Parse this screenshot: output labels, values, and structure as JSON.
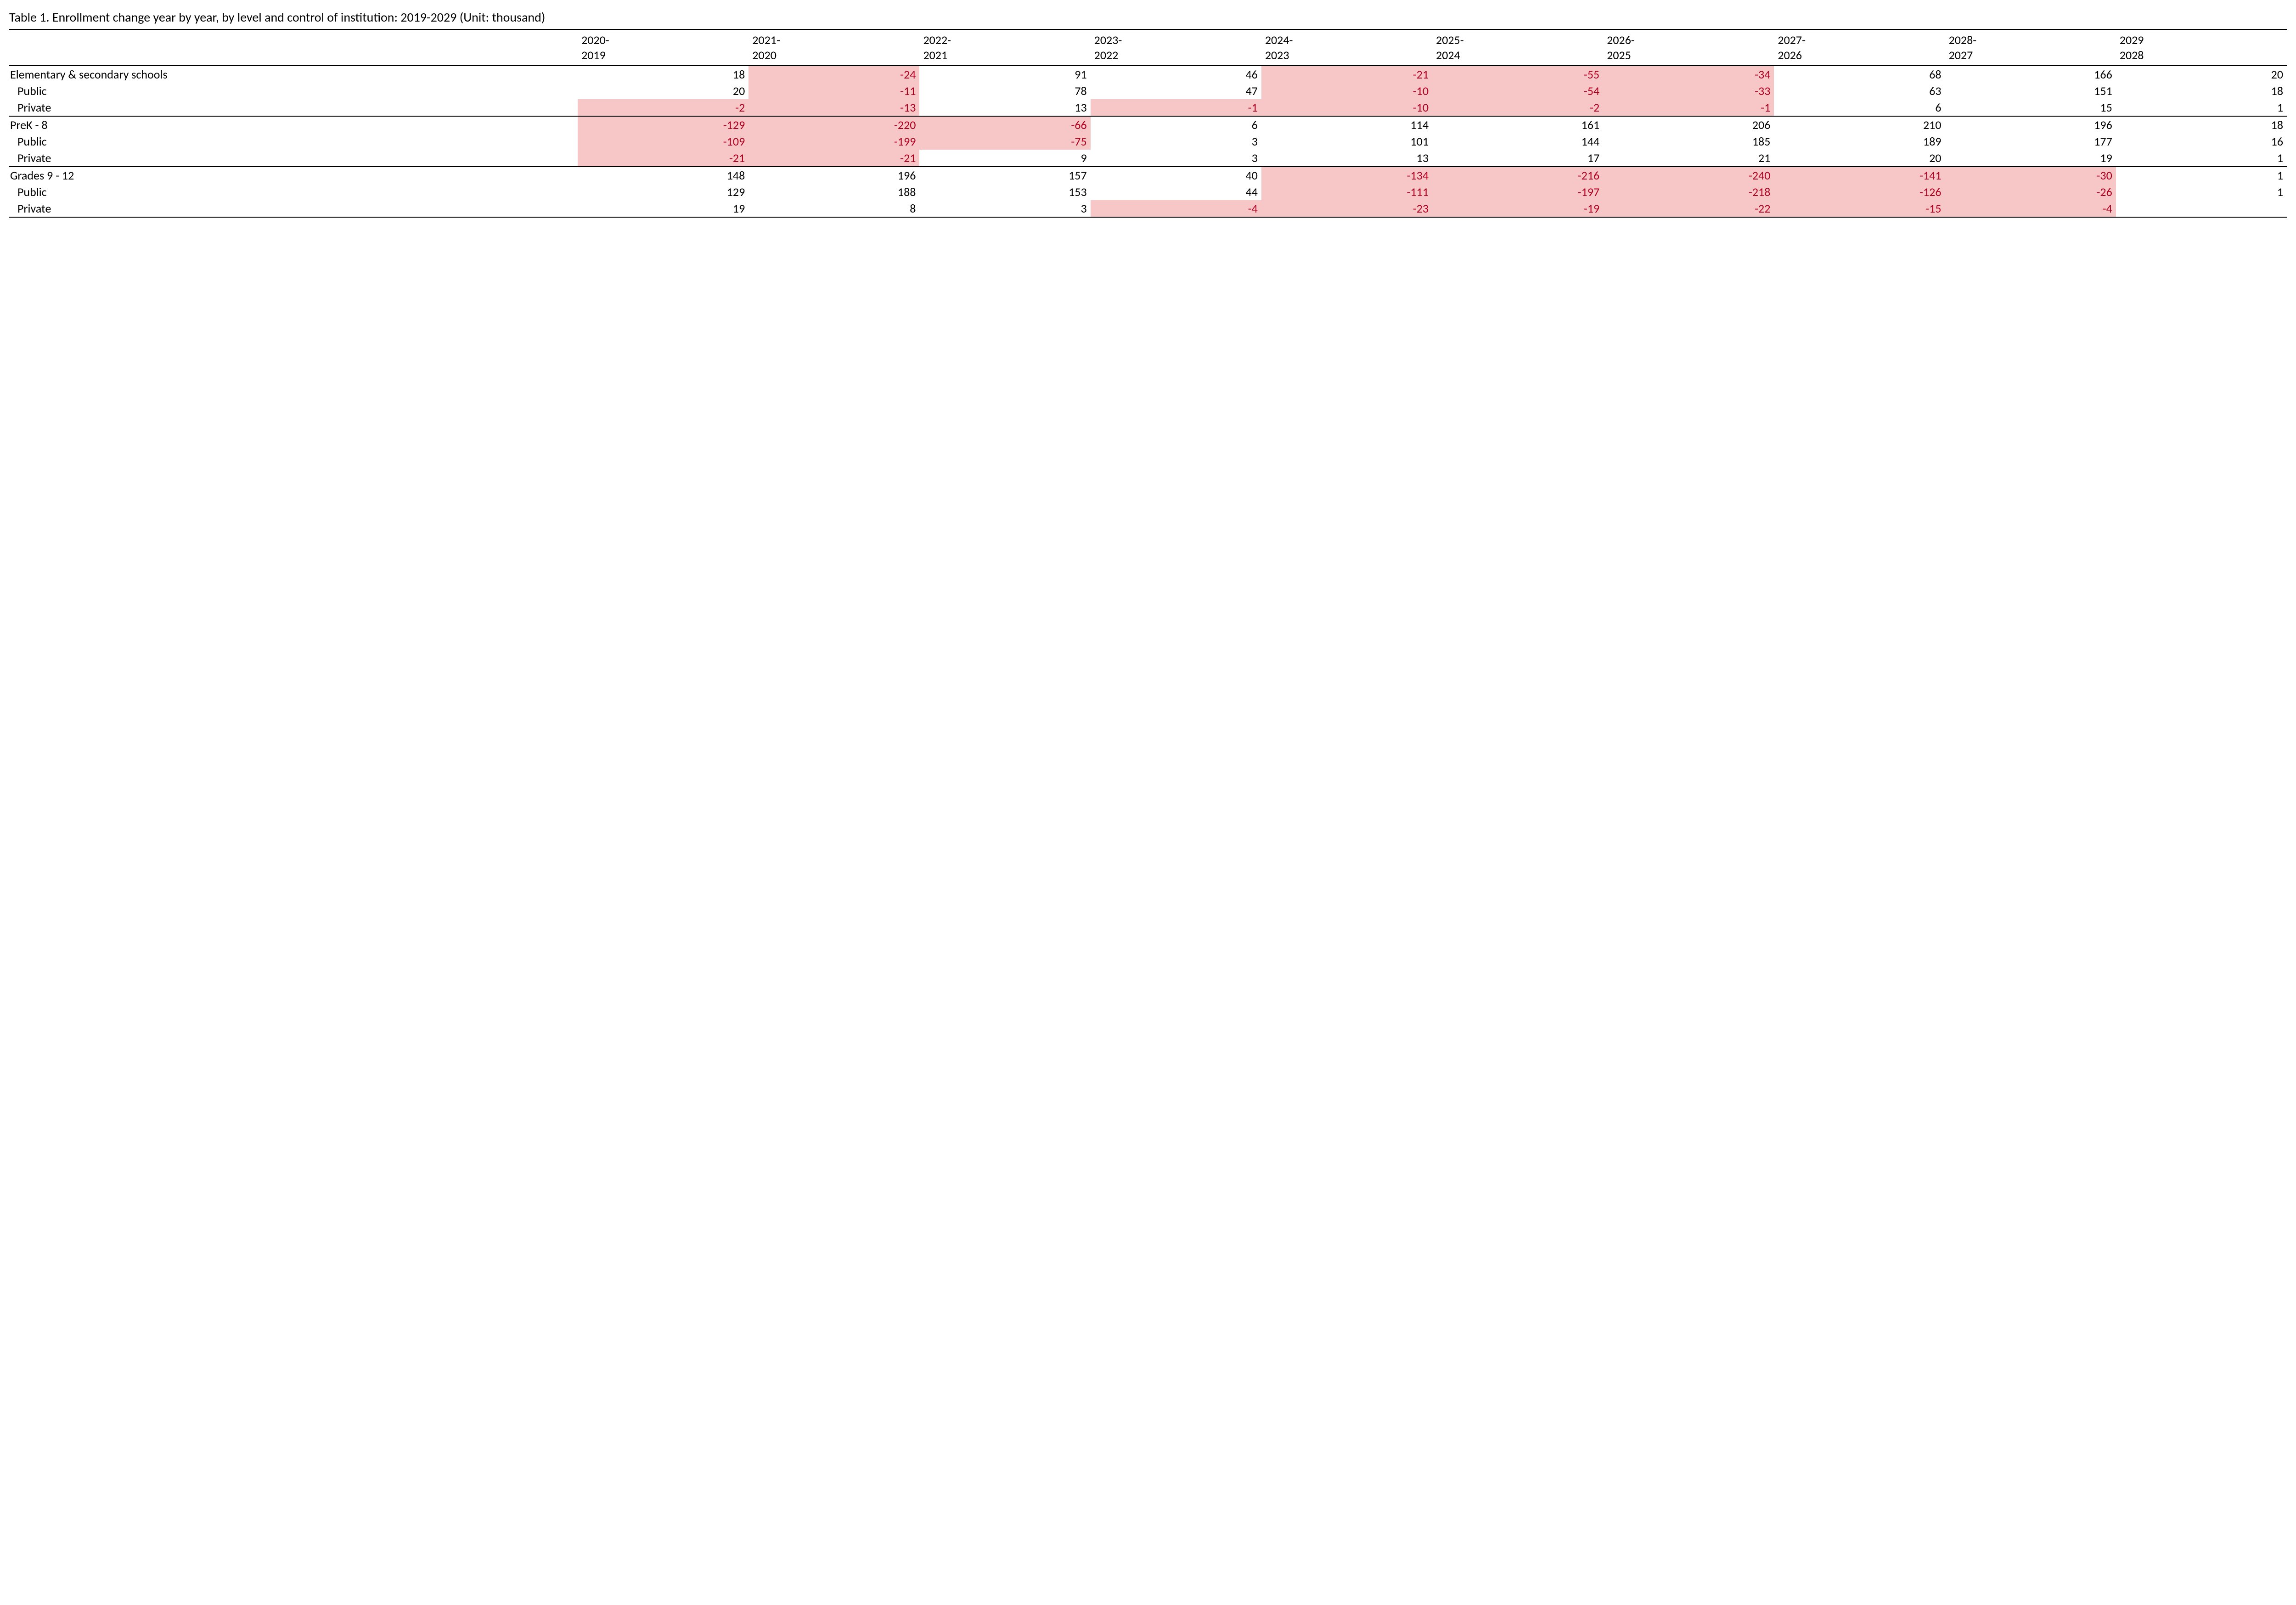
{
  "title": "Table 1. Enrollment change year by year, by level and control of institution: 2019-2029 (Unit: thousand)",
  "columns": [
    "2020-\n2019",
    "2021-\n2020",
    "2022-\n2021",
    "2023-\n2022",
    "2024-\n2023",
    "2025-\n2024",
    "2026-\n2025",
    "2027-\n2026",
    "2028-\n2027",
    "2029\n2028"
  ],
  "sections": [
    {
      "rows": [
        {
          "label": "Elementary & secondary schools",
          "indent": false,
          "values": [
            "18",
            "-24",
            "91",
            "46",
            "-21",
            "-55",
            "-34",
            "68",
            "166",
            "20"
          ],
          "neg_bg": [
            false,
            true,
            false,
            false,
            true,
            true,
            true,
            false,
            false,
            false
          ]
        },
        {
          "label": "Public",
          "indent": true,
          "values": [
            "20",
            "-11",
            "78",
            "47",
            "-10",
            "-54",
            "-33",
            "63",
            "151",
            "18"
          ],
          "neg_bg": [
            false,
            true,
            false,
            false,
            true,
            true,
            true,
            false,
            false,
            false
          ]
        },
        {
          "label": "Private",
          "indent": true,
          "values": [
            "-2",
            "-13",
            "13",
            "-1",
            "-10",
            "-2",
            "-1",
            "6",
            "15",
            "1"
          ],
          "neg_bg": [
            true,
            true,
            false,
            true,
            true,
            true,
            true,
            false,
            false,
            false
          ]
        }
      ]
    },
    {
      "rows": [
        {
          "label": "PreK - 8",
          "indent": false,
          "values": [
            "-129",
            "-220",
            "-66",
            "6",
            "114",
            "161",
            "206",
            "210",
            "196",
            "18"
          ],
          "neg_bg": [
            true,
            true,
            true,
            false,
            false,
            false,
            false,
            false,
            false,
            false
          ]
        },
        {
          "label": "Public",
          "indent": true,
          "values": [
            "-109",
            "-199",
            "-75",
            "3",
            "101",
            "144",
            "185",
            "189",
            "177",
            "16"
          ],
          "neg_bg": [
            true,
            true,
            true,
            false,
            false,
            false,
            false,
            false,
            false,
            false
          ]
        },
        {
          "label": "Private",
          "indent": true,
          "values": [
            "-21",
            "-21",
            "9",
            "3",
            "13",
            "17",
            "21",
            "20",
            "19",
            "1"
          ],
          "neg_bg": [
            true,
            true,
            false,
            false,
            false,
            false,
            false,
            false,
            false,
            false
          ]
        }
      ]
    },
    {
      "rows": [
        {
          "label": "Grades 9 - 12",
          "indent": false,
          "values": [
            "148",
            "196",
            "157",
            "40",
            "-134",
            "-216",
            "-240",
            "-141",
            "-30",
            "1"
          ],
          "neg_bg": [
            false,
            false,
            false,
            false,
            true,
            true,
            true,
            true,
            true,
            false
          ]
        },
        {
          "label": "Public",
          "indent": true,
          "values": [
            "129",
            "188",
            "153",
            "44",
            "-111",
            "-197",
            "-218",
            "-126",
            "-26",
            "1"
          ],
          "neg_bg": [
            false,
            false,
            false,
            false,
            true,
            true,
            true,
            true,
            true,
            false
          ]
        },
        {
          "label": "Private",
          "indent": true,
          "values": [
            "19",
            "8",
            "3",
            "-4",
            "-23",
            "-19",
            "-22",
            "-15",
            "-4",
            ""
          ],
          "neg_bg": [
            false,
            false,
            false,
            true,
            true,
            true,
            true,
            true,
            true,
            false
          ]
        }
      ]
    }
  ],
  "colors": {
    "negative_text": "#b00020",
    "negative_fill": "#f7c6c7",
    "rule": "#000000",
    "text": "#000000",
    "background": "#ffffff"
  },
  "style": {
    "title_fontsize": 28,
    "cell_fontsize": 26,
    "font_family": "Calibri"
  }
}
